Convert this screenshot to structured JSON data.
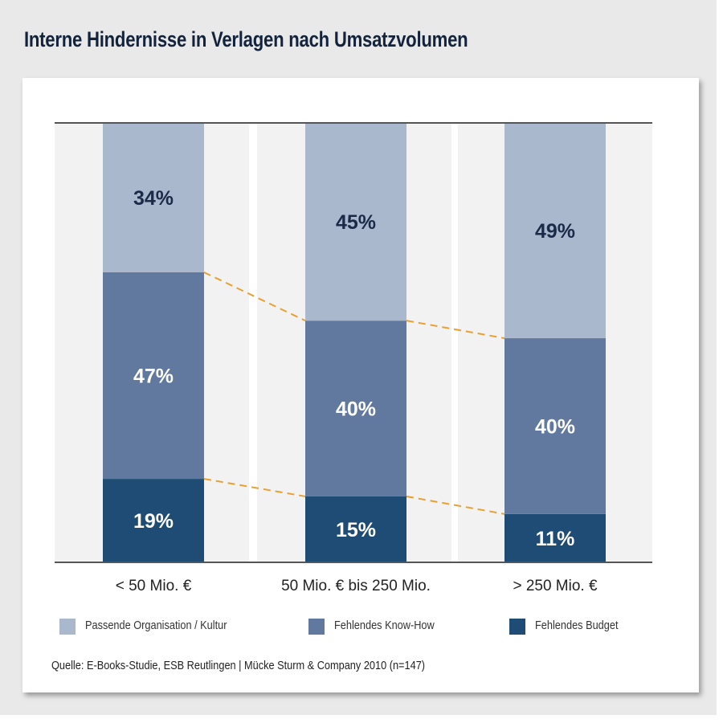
{
  "chart_data": {
    "type": "bar",
    "stacked": true,
    "percent": true,
    "title": "Interne Hindernisse in Verlagen nach Umsatzvolumen",
    "categories": [
      "< 50 Mio. €",
      "50 Mio. € bis 250 Mio.",
      "> 250 Mio. €"
    ],
    "series": [
      {
        "name": "Fehlendes Budget",
        "values": [
          19,
          15,
          11
        ],
        "color": "#1f4c74",
        "labels": [
          "19%",
          "15%",
          "11%"
        ]
      },
      {
        "name": "Fehlendes Know-How",
        "values": [
          47,
          40,
          40
        ],
        "color": "#61799e",
        "labels": [
          "47%",
          "40%",
          "40%"
        ]
      },
      {
        "name": "Passende Organisation / Kultur",
        "values": [
          34,
          45,
          49
        ],
        "color": "#aab8cd",
        "labels": [
          "34%",
          "45%",
          "49%"
        ]
      }
    ],
    "ylim": [
      0,
      100
    ],
    "legend": "bottom",
    "connector_color": "#e8a030",
    "source": "Quelle: E-Books-Studie, ESB Reutlingen | Mücke Sturm & Company 2010 (n=147)"
  }
}
